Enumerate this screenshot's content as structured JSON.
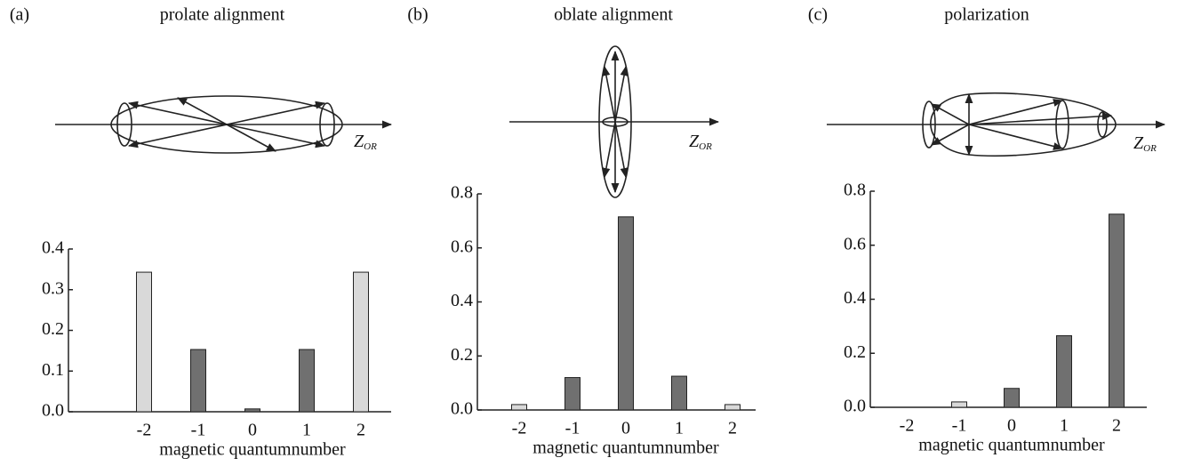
{
  "chart_data": [
    {
      "type": "bar",
      "panel_label": "(a)",
      "title": "prolate alignment",
      "diagram_axis_label": "Z",
      "diagram_axis_subscript": "OR",
      "categories": [
        "-2",
        "-1",
        "0",
        "1",
        "2"
      ],
      "values": [
        0.343,
        0.153,
        0.007,
        0.153,
        0.343
      ],
      "colors": [
        "#d9d9d9",
        "#707070",
        "#707070",
        "#707070",
        "#d9d9d9"
      ],
      "ylim": [
        0,
        0.4
      ],
      "yticks": [
        {
          "value": 0,
          "label": "0.0"
        },
        0.1,
        0.2,
        0.3,
        0.4
      ],
      "xlabel": "magnetic quantumnumber"
    },
    {
      "type": "bar",
      "panel_label": "(b)",
      "title": "oblate alignment",
      "diagram_axis_label": "Z",
      "diagram_axis_subscript": "OR",
      "categories": [
        "-2",
        "-1",
        "0",
        "1",
        "2"
      ],
      "values": [
        0.02,
        0.12,
        0.715,
        0.125,
        0.02
      ],
      "colors": [
        "#d9d9d9",
        "#707070",
        "#707070",
        "#707070",
        "#d9d9d9"
      ],
      "ylim": [
        0,
        0.8
      ],
      "yticks": [
        {
          "value": 0,
          "label": "0.0"
        },
        0.2,
        0.4,
        0.6,
        0.8
      ],
      "xlabel": "magnetic quantumnumber"
    },
    {
      "type": "bar",
      "panel_label": "(c)",
      "title": "polarization",
      "diagram_axis_label": "Z",
      "diagram_axis_subscript": "OR",
      "categories": [
        "-2",
        "-1",
        "0",
        "1",
        "2"
      ],
      "values": [
        0,
        0.02,
        0.07,
        0.265,
        0.715
      ],
      "colors": [
        "#d9d9d9",
        "#d9d9d9",
        "#707070",
        "#707070",
        "#707070"
      ],
      "ylim": [
        0,
        0.8
      ],
      "yticks": [
        {
          "value": 0,
          "label": "0.0"
        },
        0.2,
        0.4,
        0.6,
        0.8
      ],
      "xlabel": "magnetic quantumnumber"
    }
  ]
}
